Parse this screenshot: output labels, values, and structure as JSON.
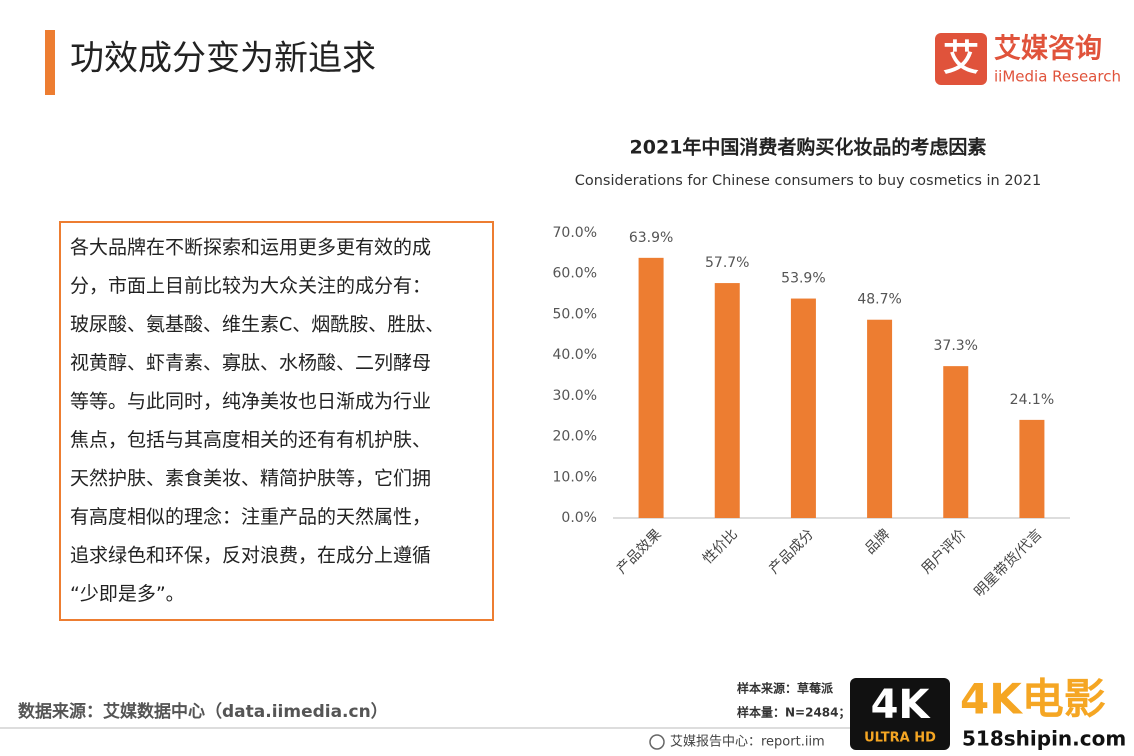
{
  "header": {
    "title": "功效成分变为新追求",
    "logo_mark": "艾",
    "logo_name": "艾媒咨询",
    "logo_sub": "iiMedia Research"
  },
  "text_box": {
    "lines": [
      "各大品牌在不断探索和运用更多更有效的成",
      "分，市面上目前比较为大众关注的成分有：",
      "玻尿酸、氨基酸、维生素C、烟酰胺、胜肽、",
      "视黄醇、虾青素、寡肽、水杨酸、二列酵母",
      "等等。与此同时，纯净美妆也日渐成为行业",
      "焦点，包括与其高度相关的还有有机护肤、",
      "天然护肤、素食美妆、精简护肤等，它们拥",
      "有高度相似的理念：注重产品的天然属性，",
      "追求绿色和环保，反对浪费，在成分上遵循",
      "“少即是多”。"
    ]
  },
  "chart_data": {
    "type": "bar",
    "title": "2021年中国消费者购买化妆品的考虑因素",
    "subtitle": "Considerations for Chinese consumers to buy cosmetics in 2021",
    "categories": [
      "产品效果",
      "性价比",
      "产品成分",
      "品牌",
      "用户评价",
      "明星带货/代言"
    ],
    "values": [
      63.9,
      57.7,
      53.9,
      48.7,
      37.3,
      24.1
    ],
    "value_labels": [
      "63.9%",
      "57.7%",
      "53.9%",
      "48.7%",
      "37.3%",
      "24.1%"
    ],
    "color": "#ed7d31",
    "ylim": [
      0,
      70
    ],
    "yticks": [
      {
        "value": 0,
        "label": "0.0%"
      },
      {
        "value": 10,
        "label": "10.0%"
      },
      {
        "value": 20,
        "label": "20.0%"
      },
      {
        "value": 30,
        "label": "30.0%"
      },
      {
        "value": 40,
        "label": "40.0%"
      },
      {
        "value": 50,
        "label": "50.0%"
      },
      {
        "value": 60,
        "label": "60.0%"
      },
      {
        "value": 70,
        "label": "70.0%"
      }
    ],
    "grid": false
  },
  "footer": {
    "source": "数据来源：艾媒数据中心（data.iimedia.cn）",
    "sample_source": "样本来源：草莓派",
    "sample_size": "样本量：N=2484；",
    "report_center": "艾媒报告中心：report.iim"
  },
  "watermark": {
    "badge": "4K",
    "badge_sub": "ULTRA HD",
    "brand": "4K电影",
    "site": "518shipin.com"
  }
}
